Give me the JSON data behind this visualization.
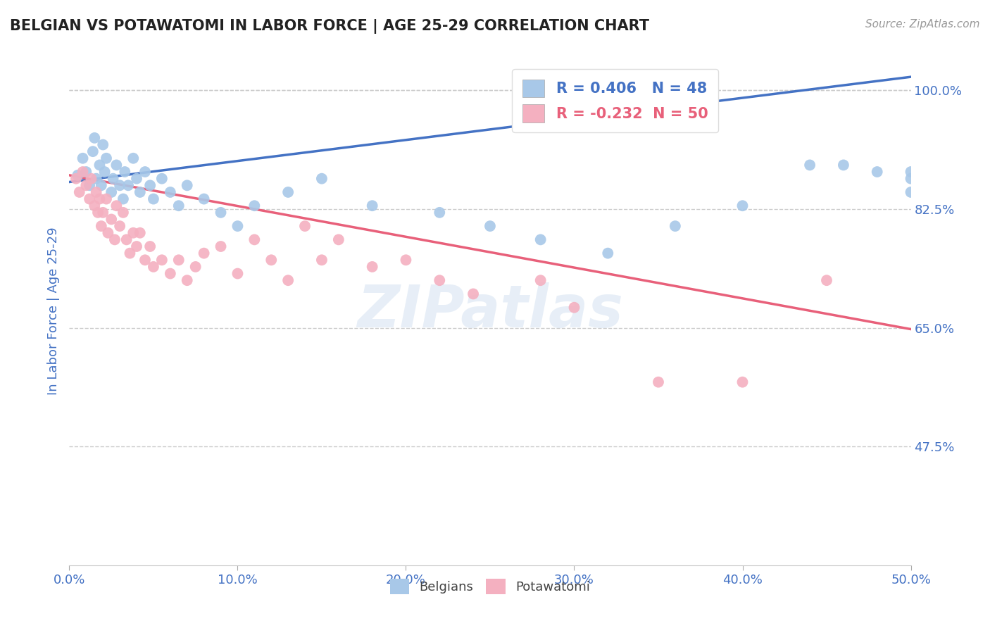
{
  "title": "BELGIAN VS POTAWATOMI IN LABOR FORCE | AGE 25-29 CORRELATION CHART",
  "source": "Source: ZipAtlas.com",
  "ylabel": "In Labor Force | Age 25-29",
  "xlim": [
    0.0,
    0.5
  ],
  "ylim": [
    0.3,
    1.05
  ],
  "xticks": [
    0.0,
    0.1,
    0.2,
    0.3,
    0.4,
    0.5
  ],
  "xtick_labels": [
    "0.0%",
    "10.0%",
    "20.0%",
    "30.0%",
    "40.0%",
    "50.0%"
  ],
  "ytick_vals": [
    0.475,
    0.65,
    0.825,
    1.0
  ],
  "ytick_labels": [
    "47.5%",
    "65.0%",
    "82.5%",
    "100.0%"
  ],
  "blue_R": 0.406,
  "blue_N": 48,
  "pink_R": -0.232,
  "pink_N": 50,
  "blue_color": "#a8c8e8",
  "pink_color": "#f4b0c0",
  "blue_line_color": "#4472c4",
  "pink_line_color": "#e8607a",
  "axis_color": "#4472c4",
  "blue_line_x0": 0.0,
  "blue_line_x1": 0.5,
  "blue_line_y0": 0.865,
  "blue_line_y1": 1.02,
  "pink_line_x0": 0.0,
  "pink_line_x1": 0.5,
  "pink_line_y0": 0.875,
  "pink_line_y1": 0.648,
  "blue_scatter_x": [
    0.005,
    0.008,
    0.01,
    0.012,
    0.014,
    0.015,
    0.016,
    0.018,
    0.019,
    0.02,
    0.021,
    0.022,
    0.025,
    0.026,
    0.028,
    0.03,
    0.032,
    0.033,
    0.035,
    0.038,
    0.04,
    0.042,
    0.045,
    0.048,
    0.05,
    0.055,
    0.06,
    0.065,
    0.07,
    0.08,
    0.09,
    0.1,
    0.11,
    0.13,
    0.15,
    0.18,
    0.22,
    0.25,
    0.28,
    0.32,
    0.36,
    0.4,
    0.44,
    0.46,
    0.48,
    0.5,
    0.5,
    0.5
  ],
  "blue_scatter_y": [
    0.875,
    0.9,
    0.88,
    0.86,
    0.91,
    0.93,
    0.87,
    0.89,
    0.86,
    0.92,
    0.88,
    0.9,
    0.85,
    0.87,
    0.89,
    0.86,
    0.84,
    0.88,
    0.86,
    0.9,
    0.87,
    0.85,
    0.88,
    0.86,
    0.84,
    0.87,
    0.85,
    0.83,
    0.86,
    0.84,
    0.82,
    0.8,
    0.83,
    0.85,
    0.87,
    0.83,
    0.82,
    0.8,
    0.78,
    0.76,
    0.8,
    0.83,
    0.89,
    0.89,
    0.88,
    0.88,
    0.87,
    0.85
  ],
  "pink_scatter_x": [
    0.004,
    0.006,
    0.008,
    0.01,
    0.012,
    0.013,
    0.015,
    0.016,
    0.017,
    0.018,
    0.019,
    0.02,
    0.022,
    0.023,
    0.025,
    0.027,
    0.028,
    0.03,
    0.032,
    0.034,
    0.036,
    0.038,
    0.04,
    0.042,
    0.045,
    0.048,
    0.05,
    0.055,
    0.06,
    0.065,
    0.07,
    0.075,
    0.08,
    0.09,
    0.1,
    0.11,
    0.12,
    0.13,
    0.14,
    0.15,
    0.16,
    0.18,
    0.2,
    0.22,
    0.24,
    0.28,
    0.3,
    0.35,
    0.4,
    0.45
  ],
  "pink_scatter_y": [
    0.87,
    0.85,
    0.88,
    0.86,
    0.84,
    0.87,
    0.83,
    0.85,
    0.82,
    0.84,
    0.8,
    0.82,
    0.84,
    0.79,
    0.81,
    0.78,
    0.83,
    0.8,
    0.82,
    0.78,
    0.76,
    0.79,
    0.77,
    0.79,
    0.75,
    0.77,
    0.74,
    0.75,
    0.73,
    0.75,
    0.72,
    0.74,
    0.76,
    0.77,
    0.73,
    0.78,
    0.75,
    0.72,
    0.8,
    0.75,
    0.78,
    0.74,
    0.75,
    0.72,
    0.7,
    0.72,
    0.68,
    0.57,
    0.57,
    0.72
  ]
}
